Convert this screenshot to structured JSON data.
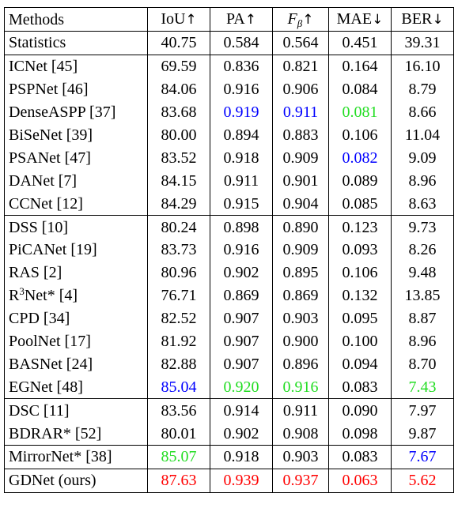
{
  "headers": {
    "methods": "Methods",
    "iou": "IoU",
    "pa": "PA",
    "f_letter": "F",
    "f_sub": "β",
    "mae": "MAE",
    "ber": "BER",
    "up_arrow": "↑",
    "down_arrow": "↓"
  },
  "rows": [
    {
      "name": "Statistics",
      "vals": [
        "40.75",
        "0.584",
        "0.564",
        "0.451",
        "39.31"
      ]
    },
    {
      "name": "ICNet [45]",
      "vals": [
        "69.59",
        "0.836",
        "0.821",
        "0.164",
        "16.10"
      ]
    },
    {
      "name": "PSPNet [46]",
      "vals": [
        "84.06",
        "0.916",
        "0.906",
        "0.084",
        "8.79"
      ]
    },
    {
      "name": "DenseASPP [37]",
      "vals": [
        "83.68",
        "0.919",
        "0.911",
        "0.081",
        "8.66"
      ]
    },
    {
      "name": "BiSeNet [39]",
      "vals": [
        "80.00",
        "0.894",
        "0.883",
        "0.106",
        "11.04"
      ]
    },
    {
      "name": "PSANet [47]",
      "vals": [
        "83.52",
        "0.918",
        "0.909",
        "0.082",
        "9.09"
      ]
    },
    {
      "name": "DANet [7]",
      "vals": [
        "84.15",
        "0.911",
        "0.901",
        "0.089",
        "8.96"
      ]
    },
    {
      "name": "CCNet [12]",
      "vals": [
        "84.29",
        "0.915",
        "0.904",
        "0.085",
        "8.63"
      ]
    },
    {
      "name": "DSS [10]",
      "vals": [
        "80.24",
        "0.898",
        "0.890",
        "0.123",
        "9.73"
      ]
    },
    {
      "name": "PiCANet [19]",
      "vals": [
        "83.73",
        "0.916",
        "0.909",
        "0.093",
        "8.26"
      ]
    },
    {
      "name": "RAS [2]",
      "vals": [
        "80.96",
        "0.902",
        "0.895",
        "0.106",
        "9.48"
      ]
    },
    {
      "name_pre": "R",
      "name_sup": "3",
      "name_post": "Net* [4]",
      "vals": [
        "76.71",
        "0.869",
        "0.869",
        "0.132",
        "13.85"
      ]
    },
    {
      "name": "CPD [34]",
      "vals": [
        "82.52",
        "0.907",
        "0.903",
        "0.095",
        "8.87"
      ]
    },
    {
      "name": "PoolNet [17]",
      "vals": [
        "81.92",
        "0.907",
        "0.900",
        "0.100",
        "8.96"
      ]
    },
    {
      "name": "BASNet [24]",
      "vals": [
        "82.88",
        "0.907",
        "0.896",
        "0.094",
        "8.70"
      ]
    },
    {
      "name": "EGNet [48]",
      "vals": [
        "85.04",
        "0.920",
        "0.916",
        "0.083",
        "7.43"
      ]
    },
    {
      "name": "DSC [11]",
      "vals": [
        "83.56",
        "0.914",
        "0.911",
        "0.090",
        "7.97"
      ]
    },
    {
      "name": "BDRAR* [52]",
      "vals": [
        "80.01",
        "0.902",
        "0.908",
        "0.098",
        "9.87"
      ]
    },
    {
      "name": "MirrorNet* [38]",
      "vals": [
        "85.07",
        "0.918",
        "0.903",
        "0.083",
        "7.67"
      ]
    },
    {
      "name": "GDNet (ours)",
      "vals": [
        "87.63",
        "0.939",
        "0.937",
        "0.063",
        "5.62"
      ]
    }
  ],
  "highlight_colors": {
    "red": "#ff0000",
    "green": "#22dd22",
    "blue": "#0000ff"
  }
}
